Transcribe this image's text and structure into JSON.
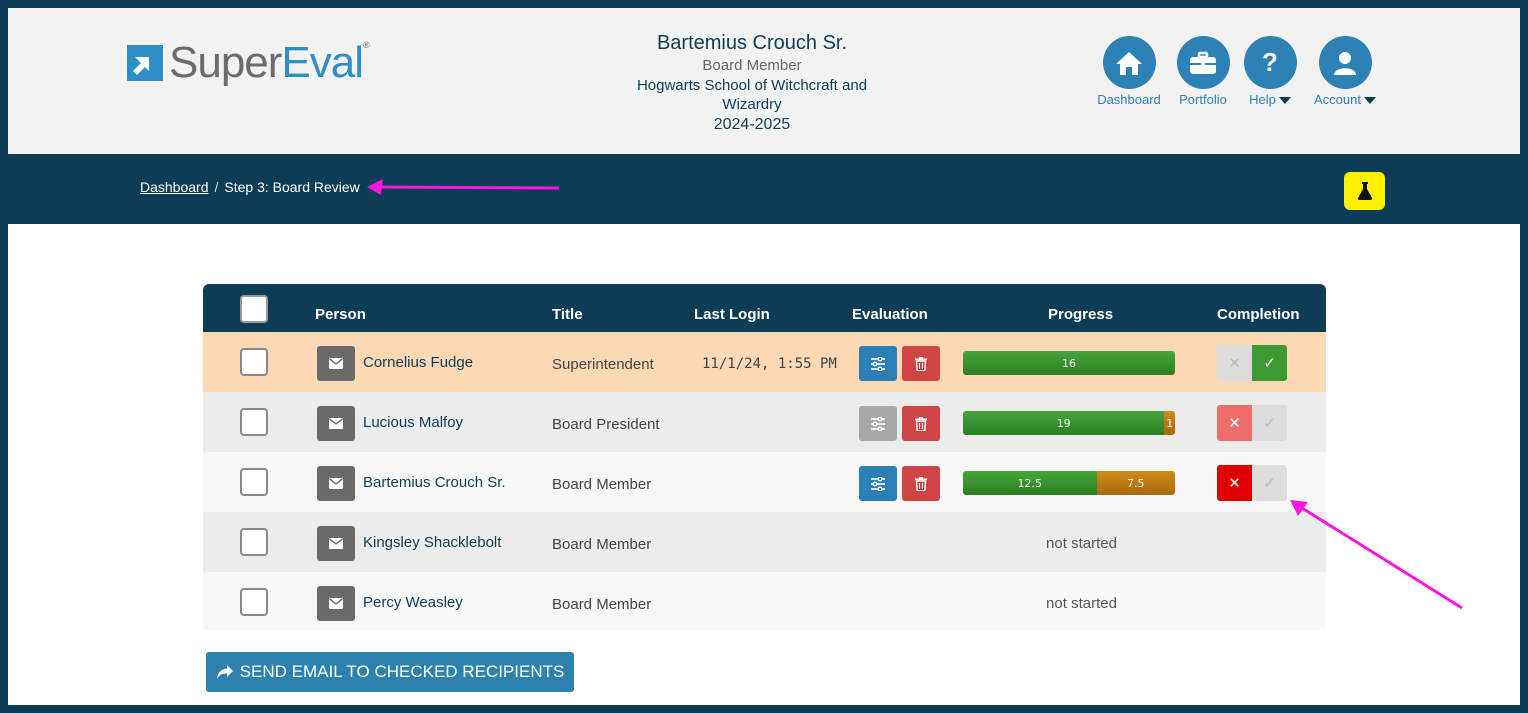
{
  "header": {
    "logo": {
      "super": "Super",
      "eval": "Eval",
      "reg": "®"
    },
    "user": {
      "name": "Bartemius Crouch Sr.",
      "role": "Board Member",
      "org_line1": "Hogwarts School of Witchcraft and",
      "org_line2": "Wizardry",
      "year": "2024-2025"
    },
    "nav": [
      {
        "label": "Dashboard",
        "icon": "home-icon"
      },
      {
        "label": "Portfolio",
        "icon": "briefcase-icon"
      },
      {
        "label": "Help",
        "icon": "question-icon"
      },
      {
        "label": "Account",
        "icon": "user-icon"
      }
    ]
  },
  "breadcrumb": {
    "home": "Dashboard",
    "separator": "/",
    "current": "Step 3: Board Review"
  },
  "table": {
    "columns": [
      "Person",
      "Title",
      "Last Login",
      "Evaluation",
      "Progress",
      "Completion"
    ],
    "rows": [
      {
        "person": "Cornelius Fudge",
        "title": "Superintendent",
        "last_login": "11/1/24, 1:55 PM",
        "progress_green": "16",
        "progress_orange": ""
      },
      {
        "person": "Lucious Malfoy",
        "title": "Board President",
        "last_login": "",
        "progress_green": "19",
        "progress_orange": "1"
      },
      {
        "person": "Bartemius Crouch Sr.",
        "title": "Board Member",
        "last_login": "",
        "progress_green": "12.5",
        "progress_orange": "7.5"
      },
      {
        "person": "Kingsley Shacklebolt",
        "title": "Board Member",
        "last_login": "",
        "status": "not started"
      },
      {
        "person": "Percy Weasley",
        "title": "Board Member",
        "last_login": "",
        "status": "not started"
      }
    ]
  },
  "send_button": "SEND EMAIL TO CHECKED RECIPIENTS",
  "colors": {
    "navy": "#0d3d56",
    "blue": "#2c82b5",
    "green": "#2e8b2a",
    "orange": "#b8740f",
    "red": "#e00000",
    "accent_yellow": "#ffef00",
    "annotation": "#ff14e0"
  }
}
